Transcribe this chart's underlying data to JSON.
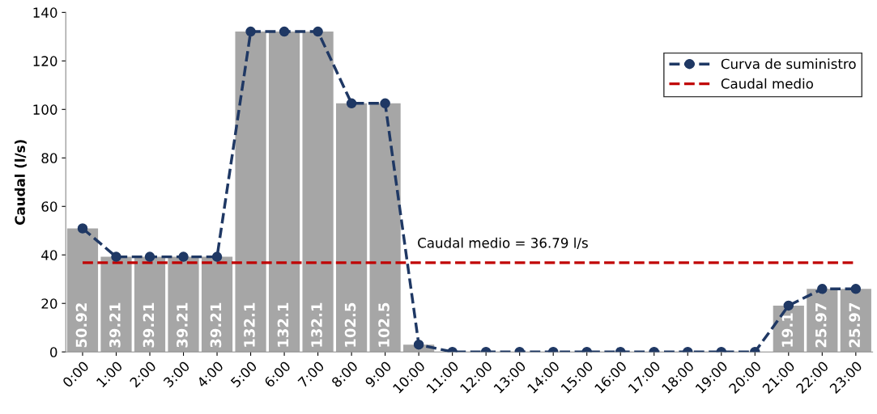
{
  "chart_data": {
    "type": "bar",
    "ylabel": "Caudal (l/s)",
    "categories": [
      "0:00",
      "1:00",
      "2:00",
      "3:00",
      "4:00",
      "5:00",
      "6:00",
      "7:00",
      "8:00",
      "9:00",
      "10:00",
      "11:00",
      "12:00",
      "13:00",
      "14:00",
      "15:00",
      "16:00",
      "17:00",
      "18:00",
      "19:00",
      "20:00",
      "21:00",
      "22:00",
      "23:00"
    ],
    "series": [
      {
        "color": "#a6a6a6",
        "values": [
          50.92,
          39.21,
          39.21,
          39.21,
          39.21,
          132.1,
          132.1,
          132.1,
          102.5,
          102.5,
          3,
          0,
          0,
          0,
          0,
          0,
          0,
          0,
          0,
          0,
          0,
          19.1,
          25.97,
          25.97
        ],
        "value_labels": [
          "50.92",
          "39.21",
          "39.21",
          "39.21",
          "39.21",
          "132.1",
          "132.1",
          "132.1",
          "102.5",
          "102.5",
          null,
          null,
          null,
          null,
          null,
          null,
          null,
          null,
          null,
          null,
          null,
          "19.1",
          "25.97",
          "25.97"
        ]
      },
      {
        "type": "line",
        "name": "Curva de suministro",
        "color": "#1f3864",
        "marker": "circle",
        "line_style": "dashed",
        "values": [
          50.92,
          39.21,
          39.21,
          39.21,
          39.21,
          132.1,
          132.1,
          132.1,
          102.5,
          102.5,
          3,
          0,
          0,
          0,
          0,
          0,
          0,
          0,
          0,
          0,
          0,
          19.1,
          25.97,
          25.97
        ]
      }
    ],
    "ref_lines": [
      {
        "axis": "y",
        "value": 36.79,
        "label": "Caudal medio",
        "color": "#c00000",
        "line_style": "dashed"
      }
    ],
    "annotations": [
      "Caudal medio = 36.79 l/s"
    ],
    "ylim": [
      0,
      140
    ],
    "yticks": [
      0,
      20,
      40,
      60,
      80,
      100,
      120,
      140
    ],
    "grid": false,
    "legend": "top right"
  }
}
